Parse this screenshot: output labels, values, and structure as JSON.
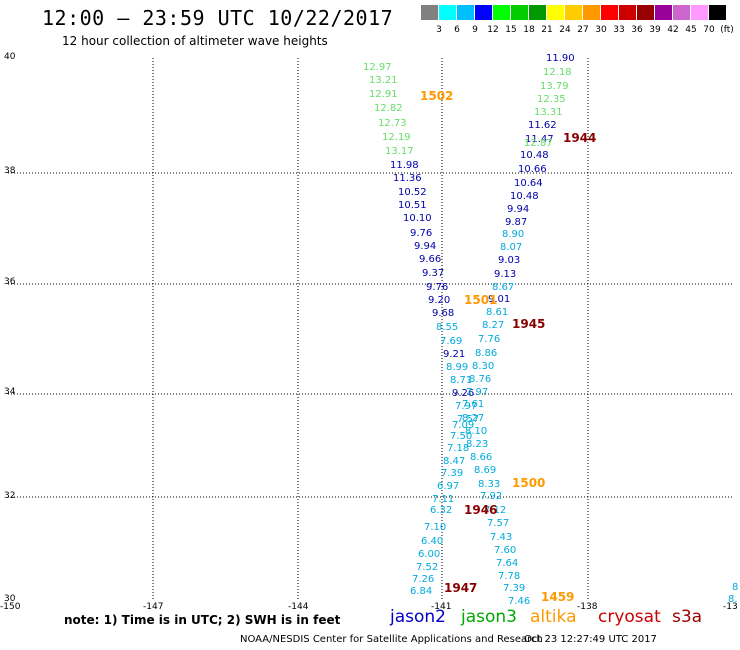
{
  "header": {
    "title": "12:00 – 23:59 UTC 10/22/2017",
    "subtitle": "12 hour collection of altimeter wave heights"
  },
  "color_scale": {
    "swatches": [
      "#808080",
      "#00ffff",
      "#00bfff",
      "#0000ff",
      "#00ff00",
      "#00cc00",
      "#009900",
      "#ffff00",
      "#ffcc00",
      "#ff9900",
      "#ff0000",
      "#cc0000",
      "#990000",
      "#990099",
      "#cc66cc",
      "#ff99ff",
      "#000000"
    ],
    "labels": [
      "3",
      "6",
      "9",
      "12",
      "15",
      "18",
      "21",
      "24",
      "27",
      "30",
      "33",
      "36",
      "39",
      "42",
      "45",
      "70"
    ],
    "unit": "(ft)"
  },
  "axes": {
    "lat_labels": [
      "40",
      "38",
      "36",
      "34",
      "32",
      "30"
    ],
    "lon_labels": [
      "-150",
      "-147",
      "-144",
      "-141",
      "-138",
      "-13"
    ]
  },
  "colors": {
    "jason2": "#0000cc",
    "jason3": "#00aa00",
    "altika": "#ff9900",
    "cryosat": "#cc0000",
    "s3a": "#990000",
    "light_green": "#66dd66",
    "cyan": "#00aadd",
    "dark_blue": "#0000aa",
    "time_orange": "#ff9900",
    "time_maroon": "#880000"
  },
  "swh_values": [
    {
      "v": "12.97",
      "c": "light_green"
    },
    {
      "v": "13.21",
      "c": "light_green"
    },
    {
      "v": "12.91",
      "c": "light_green"
    },
    {
      "v": "12.82",
      "c": "light_green"
    },
    {
      "v": "12.73",
      "c": "light_green"
    },
    {
      "v": "12.19",
      "c": "light_green"
    },
    {
      "v": "13.17",
      "c": "light_green"
    },
    {
      "v": "11.98",
      "c": "dark_blue"
    },
    {
      "v": "11.36",
      "c": "dark_blue"
    },
    {
      "v": "10.52",
      "c": "dark_blue"
    },
    {
      "v": "10.51",
      "c": "dark_blue"
    },
    {
      "v": "10.10",
      "c": "dark_blue"
    },
    {
      "v": "9.76",
      "c": "dark_blue"
    },
    {
      "v": "9.94",
      "c": "dark_blue"
    },
    {
      "v": "9.66",
      "c": "dark_blue"
    },
    {
      "v": "9.37",
      "c": "dark_blue"
    },
    {
      "v": "9.76",
      "c": "dark_blue"
    },
    {
      "v": "9.20",
      "c": "dark_blue"
    },
    {
      "v": "9.68",
      "c": "dark_blue"
    },
    {
      "v": "8.55",
      "c": "cyan"
    },
    {
      "v": "7.69",
      "c": "cyan"
    },
    {
      "v": "9.21",
      "c": "dark_blue"
    },
    {
      "v": "8.99",
      "c": "cyan"
    },
    {
      "v": "8.71",
      "c": "cyan"
    },
    {
      "v": "9.26",
      "c": "dark_blue"
    },
    {
      "v": "7.97",
      "c": "cyan"
    },
    {
      "v": "7.57",
      "c": "cyan"
    },
    {
      "v": "7.09",
      "c": "cyan"
    },
    {
      "v": "7.50",
      "c": "cyan"
    },
    {
      "v": "7.18",
      "c": "cyan"
    },
    {
      "v": "8.47",
      "c": "cyan"
    },
    {
      "v": "7.39",
      "c": "cyan"
    },
    {
      "v": "6.97",
      "c": "cyan"
    },
    {
      "v": "7.11",
      "c": "cyan"
    },
    {
      "v": "6.32",
      "c": "cyan"
    },
    {
      "v": "7.10",
      "c": "cyan"
    },
    {
      "v": "6.40",
      "c": "cyan"
    },
    {
      "v": "6.00",
      "c": "cyan"
    },
    {
      "v": "7.52",
      "c": "cyan"
    },
    {
      "v": "7.26",
      "c": "cyan"
    },
    {
      "v": "6.84",
      "c": "cyan"
    },
    {
      "v": "11.90",
      "c": "dark_blue"
    },
    {
      "v": "12.18",
      "c": "light_green"
    },
    {
      "v": "13.79",
      "c": "light_green"
    },
    {
      "v": "12.35",
      "c": "light_green"
    },
    {
      "v": "13.31",
      "c": "light_green"
    },
    {
      "v": "11.62",
      "c": "dark_blue"
    },
    {
      "v": "11.47",
      "c": "dark_blue"
    },
    {
      "v": "12.87",
      "c": "light_green"
    },
    {
      "v": "10.48",
      "c": "dark_blue"
    },
    {
      "v": "10.66",
      "c": "dark_blue"
    },
    {
      "v": "10.64",
      "c": "dark_blue"
    },
    {
      "v": "10.48",
      "c": "dark_blue"
    },
    {
      "v": "9.94",
      "c": "dark_blue"
    },
    {
      "v": "9.87",
      "c": "dark_blue"
    },
    {
      "v": "8.90",
      "c": "cyan"
    },
    {
      "v": "8.07",
      "c": "cyan"
    },
    {
      "v": "9.03",
      "c": "dark_blue"
    },
    {
      "v": "9.13",
      "c": "dark_blue"
    },
    {
      "v": "8.67",
      "c": "cyan"
    },
    {
      "v": "9.01",
      "c": "dark_blue"
    },
    {
      "v": "8.61",
      "c": "cyan"
    },
    {
      "v": "8.27",
      "c": "cyan"
    },
    {
      "v": "7.76",
      "c": "cyan"
    },
    {
      "v": "8.86",
      "c": "cyan"
    },
    {
      "v": "8.30",
      "c": "cyan"
    },
    {
      "v": "8.76",
      "c": "cyan"
    },
    {
      "v": "7.97",
      "c": "cyan"
    },
    {
      "v": "7.61",
      "c": "cyan"
    },
    {
      "v": "8.27",
      "c": "cyan"
    },
    {
      "v": "8.10",
      "c": "cyan"
    },
    {
      "v": "8.23",
      "c": "cyan"
    },
    {
      "v": "8.66",
      "c": "cyan"
    },
    {
      "v": "8.69",
      "c": "cyan"
    },
    {
      "v": "8.33",
      "c": "cyan"
    },
    {
      "v": "7.92",
      "c": "cyan"
    },
    {
      "v": "7.12",
      "c": "cyan"
    },
    {
      "v": "7.57",
      "c": "cyan"
    },
    {
      "v": "7.43",
      "c": "cyan"
    },
    {
      "v": "7.60",
      "c": "cyan"
    },
    {
      "v": "7.64",
      "c": "cyan"
    },
    {
      "v": "7.78",
      "c": "cyan"
    },
    {
      "v": "7.39",
      "c": "cyan"
    },
    {
      "v": "7.46",
      "c": "cyan"
    },
    {
      "v": "8",
      "c": "cyan"
    },
    {
      "v": "8.",
      "c": "cyan"
    }
  ],
  "time_labels": [
    {
      "t": "1502",
      "c": "time_orange"
    },
    {
      "t": "1944",
      "c": "time_maroon"
    },
    {
      "t": "1501",
      "c": "time_orange"
    },
    {
      "t": "1945",
      "c": "time_maroon"
    },
    {
      "t": "1500",
      "c": "time_orange"
    },
    {
      "t": "1946",
      "c": "time_maroon"
    },
    {
      "t": "1947",
      "c": "time_maroon"
    },
    {
      "t": "1459",
      "c": "time_orange"
    }
  ],
  "footer": {
    "note": "note: 1) Time is in UTC; 2) SWH is in feet",
    "legend": {
      "jason2": "jason2",
      "jason3": "jason3",
      "altika": "altika",
      "cryosat": "cryosat",
      "s3a": "s3a"
    },
    "credit": "NOAA/NESDIS Center for Satellite Applications and Research",
    "timestamp": "Oct 23 12:27:49 UTC 2017"
  }
}
